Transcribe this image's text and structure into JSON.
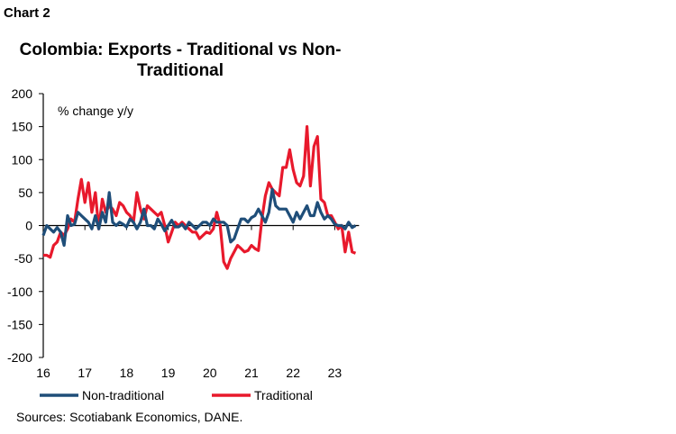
{
  "header": {
    "chart_number": "Chart 2",
    "title": "Colombia: Exports - Traditional vs Non-Traditional"
  },
  "footer": {
    "sources": "Sources: Scotiabank Economics, DANE."
  },
  "chart_data": {
    "type": "line",
    "title": "Colombia: Exports - Traditional vs Non-Traditional",
    "ylabel": "% change y/y",
    "ylim": [
      -200,
      200
    ],
    "yticks": [
      200,
      150,
      100,
      50,
      0,
      -50,
      -100,
      -150,
      -200
    ],
    "xticks": [
      "16",
      "17",
      "18",
      "19",
      "20",
      "21",
      "22",
      "23"
    ],
    "x_start": "2016-01",
    "x_frequency": "monthly",
    "legend": "bottom",
    "grid": false,
    "series": [
      {
        "name": "Non-traditional",
        "color": "#1f4e79",
        "values": [
          -15,
          0,
          -5,
          -10,
          -3,
          -10,
          -30,
          15,
          0,
          2,
          20,
          15,
          10,
          5,
          -5,
          15,
          -5,
          20,
          5,
          50,
          5,
          0,
          5,
          2,
          -2,
          10,
          5,
          -5,
          5,
          25,
          0,
          0,
          -5,
          10,
          2,
          -8,
          0,
          8,
          -2,
          -2,
          2,
          -5,
          5,
          0,
          -5,
          0,
          5,
          5,
          0,
          10,
          5,
          5,
          5,
          0,
          -25,
          -20,
          -5,
          10,
          10,
          5,
          12,
          15,
          25,
          15,
          5,
          20,
          55,
          30,
          25,
          25,
          25,
          15,
          5,
          20,
          10,
          20,
          30,
          15,
          15,
          35,
          20,
          10,
          15,
          10,
          2,
          0,
          0,
          -5,
          5,
          -3,
          0
        ]
      },
      {
        "name": "Traditional",
        "color": "#e8192c",
        "values": [
          -45,
          -45,
          -48,
          -30,
          -25,
          -10,
          -15,
          -5,
          10,
          5,
          40,
          70,
          35,
          65,
          20,
          50,
          -5,
          40,
          20,
          30,
          25,
          15,
          35,
          30,
          20,
          15,
          5,
          50,
          25,
          10,
          30,
          25,
          20,
          15,
          20,
          0,
          -25,
          -10,
          5,
          0,
          5,
          0,
          -5,
          -10,
          -10,
          -20,
          -15,
          -10,
          -12,
          -5,
          20,
          0,
          -55,
          -65,
          -50,
          -40,
          -30,
          -35,
          -40,
          -38,
          -30,
          -35,
          -38,
          10,
          45,
          65,
          55,
          50,
          45,
          88,
          88,
          115,
          85,
          65,
          60,
          75,
          150,
          60,
          120,
          135,
          40,
          35,
          15,
          15,
          5,
          -5,
          0,
          -40,
          -10,
          -40,
          -42
        ]
      }
    ]
  }
}
